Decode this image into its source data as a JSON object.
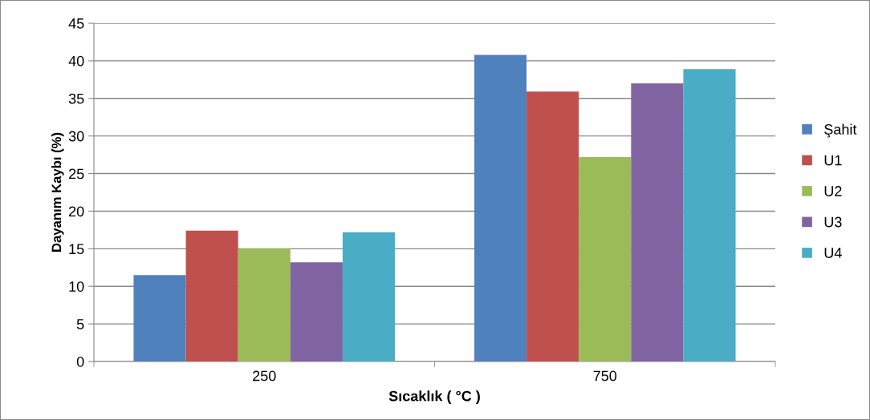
{
  "chart_data": {
    "type": "bar",
    "xlabel": "Sıcaklık ( °C )",
    "ylabel": "Dayanım Kaybı (%)",
    "categories": [
      "250",
      "750"
    ],
    "series": [
      {
        "name": "Şahit",
        "color": "#4f81bd",
        "values": [
          11.5,
          40.8
        ]
      },
      {
        "name": "U1",
        "color": "#c0504d",
        "values": [
          17.4,
          35.9
        ]
      },
      {
        "name": "U2",
        "color": "#9bbb59",
        "values": [
          15.0,
          27.2
        ]
      },
      {
        "name": "U3",
        "color": "#8064a2",
        "values": [
          13.2,
          37.0
        ]
      },
      {
        "name": "U4",
        "color": "#4bacc6",
        "values": [
          17.2,
          38.9
        ]
      }
    ],
    "ylim": [
      0,
      45
    ],
    "yticks": [
      0,
      5,
      10,
      15,
      20,
      25,
      30,
      35,
      40,
      45
    ],
    "grid": "y",
    "legend": "right"
  }
}
